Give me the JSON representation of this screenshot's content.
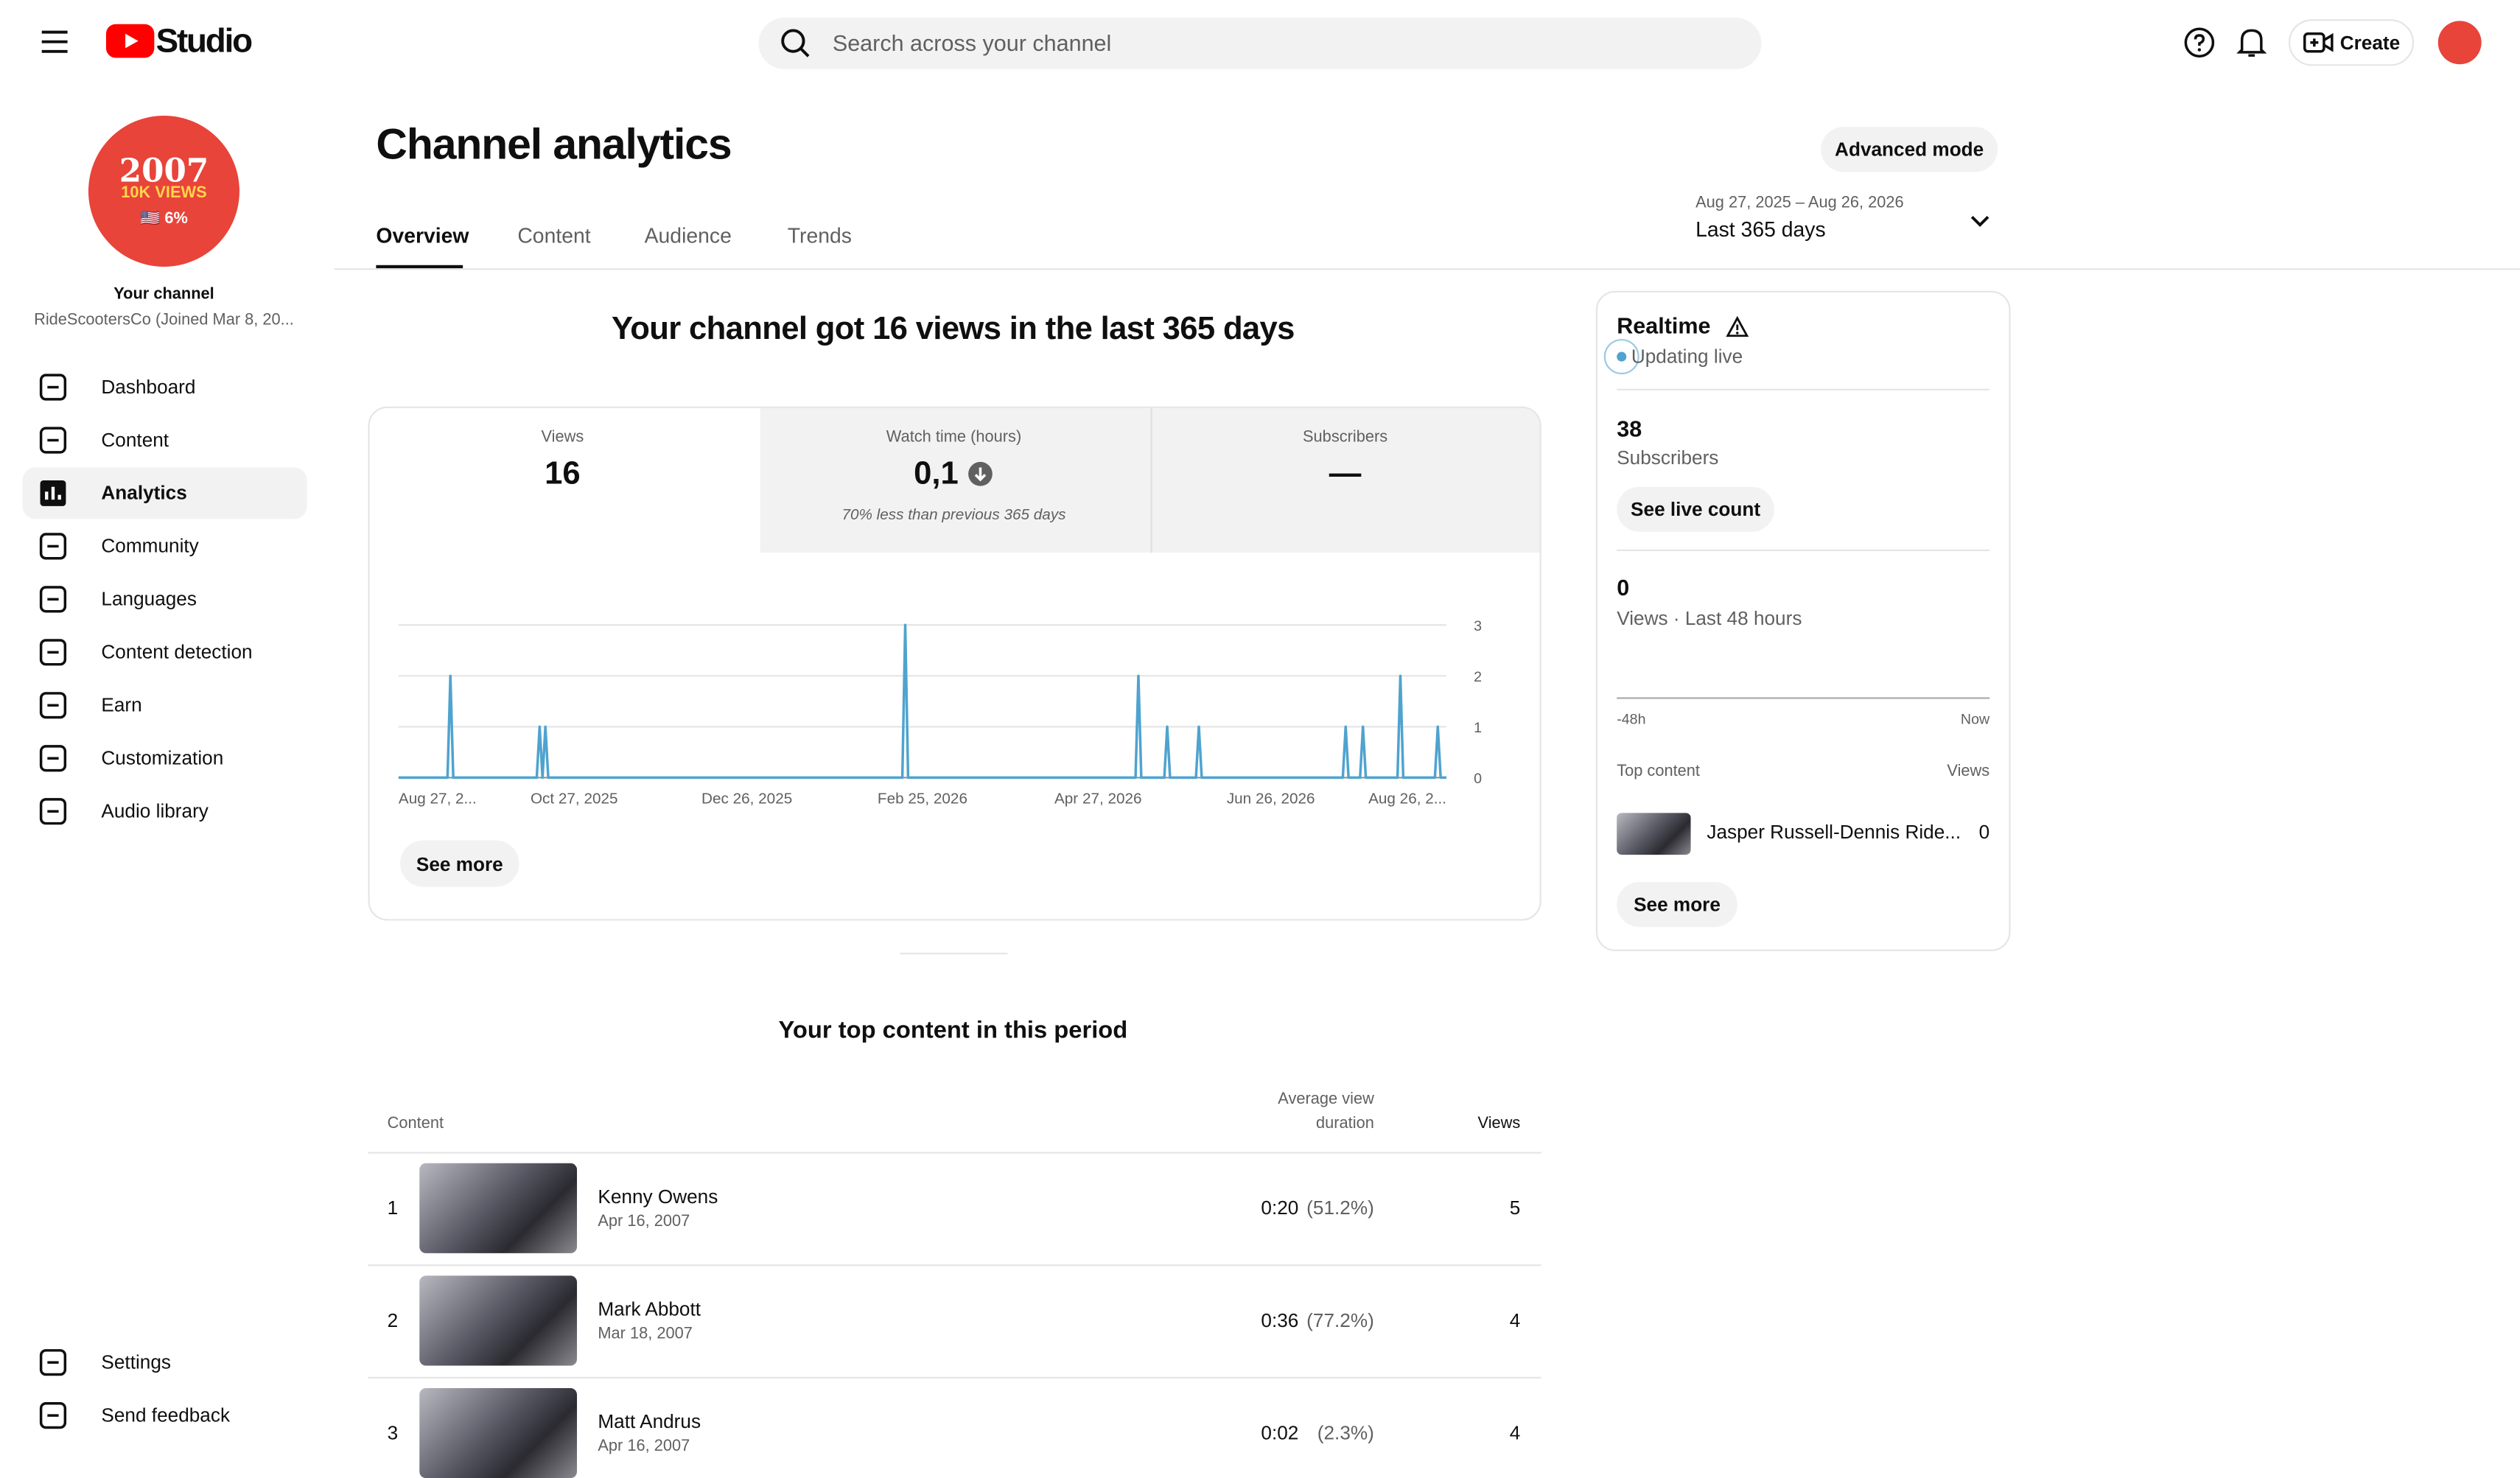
{
  "header": {
    "logo": "Studio",
    "search_placeholder": "Search across your channel",
    "create": "Create"
  },
  "sidebar": {
    "avatar": {
      "year": "2007",
      "views": "10K VIEWS",
      "stat": "🇺🇸 6%"
    },
    "channel_label": "Your channel",
    "channel_name": "RideScootersCo (Joined Mar 8, 20...",
    "nav": [
      "Dashboard",
      "Content",
      "Analytics",
      "Community",
      "Languages",
      "Content detection",
      "Earn",
      "Customization",
      "Audio library"
    ],
    "footer": [
      "Settings",
      "Send feedback"
    ]
  },
  "page": {
    "title": "Channel analytics",
    "advanced_mode": "Advanced mode",
    "tabs": [
      "Overview",
      "Content",
      "Audience",
      "Trends"
    ],
    "date_range": {
      "dates": "Aug 27, 2025 – Aug 26, 2026",
      "label": "Last 365 days"
    }
  },
  "overview": {
    "headline": "Your channel got 16 views in the last 365 days",
    "metrics": [
      {
        "label": "Views",
        "value": "16"
      },
      {
        "label": "Watch time (hours)",
        "value": "0,1",
        "note": "70% less than previous 365 days"
      },
      {
        "label": "Subscribers",
        "value": "—"
      }
    ],
    "see_more": "See more"
  },
  "chart_data": {
    "type": "line",
    "color": "#4fa3cf",
    "ylim": [
      0,
      3
    ],
    "yticks": [
      0,
      1,
      2,
      3
    ],
    "grid": true,
    "categories": [
      "Aug 27, 2...",
      null,
      null,
      null,
      null,
      null,
      null,
      null,
      null,
      null,
      null,
      null,
      null,
      null,
      null,
      null,
      null,
      null,
      null,
      null,
      null,
      null,
      null,
      null,
      null,
      null,
      null,
      null,
      null,
      null,
      null,
      null,
      null,
      null,
      null,
      null,
      null,
      null,
      null,
      null,
      null,
      null,
      null,
      null,
      null,
      null,
      null,
      null,
      null,
      null,
      null,
      null,
      null,
      null,
      null,
      null,
      null,
      null,
      null,
      null,
      null,
      "Oct 27, 2025",
      null,
      null,
      null,
      null,
      null,
      null,
      null,
      null,
      null,
      null,
      null,
      null,
      null,
      null,
      null,
      null,
      null,
      null,
      null,
      null,
      null,
      null,
      null,
      null,
      null,
      null,
      null,
      null,
      null,
      null,
      null,
      null,
      null,
      null,
      null,
      null,
      null,
      null,
      null,
      null,
      null,
      null,
      null,
      null,
      null,
      null,
      null,
      null,
      null,
      null,
      null,
      null,
      null,
      null,
      null,
      null,
      null,
      null,
      null,
      "Dec 26, 2025",
      null,
      null,
      null,
      null,
      null,
      null,
      null,
      null,
      null,
      null,
      null,
      null,
      null,
      null,
      null,
      null,
      null,
      null,
      null,
      null,
      null,
      null,
      null,
      null,
      null,
      null,
      null,
      null,
      null,
      null,
      null,
      null,
      null,
      null,
      null,
      null,
      null,
      null,
      null,
      null,
      null,
      null,
      null,
      null,
      null,
      null,
      null,
      null,
      null,
      null,
      null,
      null,
      null,
      null,
      null,
      null,
      null,
      null,
      null,
      null,
      "Feb 25, 2026",
      null,
      null,
      null,
      null,
      null,
      null,
      null,
      null,
      null,
      null,
      null,
      null,
      null,
      null,
      null,
      null,
      null,
      null,
      null,
      null,
      null,
      null,
      null,
      null,
      null,
      null,
      null,
      null,
      null,
      null,
      null,
      null,
      null,
      null,
      null,
      null,
      null,
      null,
      null,
      null,
      null,
      null,
      null,
      null,
      null,
      null,
      null,
      null,
      null,
      null,
      null,
      null,
      null,
      null,
      null,
      null,
      null,
      null,
      null,
      null,
      "Apr 27, 2026",
      null,
      null,
      null,
      null,
      null,
      null,
      null,
      null,
      null,
      null,
      null,
      null,
      null,
      null,
      null,
      null,
      null,
      null,
      null,
      null,
      null,
      null,
      null,
      null,
      null,
      null,
      null,
      null,
      null,
      null,
      null,
      null,
      null,
      null,
      null,
      null,
      null,
      null,
      null,
      null,
      null,
      null,
      null,
      null,
      null,
      null,
      null,
      null,
      null,
      null,
      null,
      null,
      null,
      null,
      null,
      null,
      null,
      null,
      null,
      "Jun 26, 2026",
      null,
      null,
      null,
      null,
      null,
      null,
      null,
      null,
      null,
      null,
      null,
      null,
      null,
      null,
      null,
      null,
      null,
      null,
      null,
      null,
      null,
      null,
      null,
      null,
      null,
      null,
      null,
      null,
      null,
      null,
      null,
      null,
      null,
      null,
      null,
      null,
      null,
      null,
      null,
      null,
      null,
      null,
      null,
      null,
      null,
      null,
      null,
      null,
      null,
      null,
      null,
      null,
      null,
      null,
      null,
      null,
      null,
      null,
      null,
      null,
      "Aug 26, 2..."
    ],
    "values": [
      0,
      0,
      0,
      0,
      0,
      0,
      0,
      0,
      0,
      0,
      0,
      0,
      0,
      0,
      0,
      0,
      0,
      0,
      2,
      0,
      0,
      0,
      0,
      0,
      0,
      0,
      0,
      0,
      0,
      0,
      0,
      0,
      0,
      0,
      0,
      0,
      0,
      0,
      0,
      0,
      0,
      0,
      0,
      0,
      0,
      0,
      0,
      0,
      0,
      1,
      0,
      1,
      0,
      0,
      0,
      0,
      0,
      0,
      0,
      0,
      0,
      0,
      0,
      0,
      0,
      0,
      0,
      0,
      0,
      0,
      0,
      0,
      0,
      0,
      0,
      0,
      0,
      0,
      0,
      0,
      0,
      0,
      0,
      0,
      0,
      0,
      0,
      0,
      0,
      0,
      0,
      0,
      0,
      0,
      0,
      0,
      0,
      0,
      0,
      0,
      0,
      0,
      0,
      0,
      0,
      0,
      0,
      0,
      0,
      0,
      0,
      0,
      0,
      0,
      0,
      0,
      0,
      0,
      0,
      0,
      0,
      0,
      0,
      0,
      0,
      0,
      0,
      0,
      0,
      0,
      0,
      0,
      0,
      0,
      0,
      0,
      0,
      0,
      0,
      0,
      0,
      0,
      0,
      0,
      0,
      0,
      0,
      0,
      0,
      0,
      0,
      0,
      0,
      0,
      0,
      0,
      0,
      0,
      0,
      0,
      0,
      0,
      0,
      0,
      0,
      0,
      0,
      0,
      0,
      0,
      0,
      0,
      0,
      0,
      0,
      0,
      3,
      0,
      0,
      0,
      0,
      0,
      0,
      0,
      0,
      0,
      0,
      0,
      0,
      0,
      0,
      0,
      0,
      0,
      0,
      0,
      0,
      0,
      0,
      0,
      0,
      0,
      0,
      0,
      0,
      0,
      0,
      0,
      0,
      0,
      0,
      0,
      0,
      0,
      0,
      0,
      0,
      0,
      0,
      0,
      0,
      0,
      0,
      0,
      0,
      0,
      0,
      0,
      0,
      0,
      0,
      0,
      0,
      0,
      0,
      0,
      0,
      0,
      0,
      0,
      0,
      0,
      0,
      0,
      0,
      0,
      0,
      0,
      0,
      0,
      0,
      0,
      0,
      0,
      0,
      0,
      0,
      2,
      0,
      0,
      0,
      0,
      0,
      0,
      0,
      0,
      0,
      1,
      0,
      0,
      0,
      0,
      0,
      0,
      0,
      0,
      0,
      0,
      1,
      0,
      0,
      0,
      0,
      0,
      0,
      0,
      0,
      0,
      0,
      0,
      0,
      0,
      0,
      0,
      0,
      0,
      0,
      0,
      0,
      0,
      0,
      0,
      0,
      0,
      0,
      0,
      0,
      0,
      0,
      0,
      0,
      0,
      0,
      0,
      0,
      0,
      0,
      0,
      0,
      0,
      0,
      0,
      0,
      0,
      0,
      0,
      0,
      0,
      0,
      1,
      0,
      0,
      0,
      0,
      0,
      1,
      0,
      0,
      0,
      0,
      0,
      0,
      0,
      0,
      0,
      0,
      0,
      0,
      2,
      0,
      0,
      0,
      0,
      0,
      0,
      0,
      0,
      0,
      0,
      0,
      0,
      1,
      0,
      0,
      0
    ]
  },
  "top_content": {
    "title": "Your top content in this period",
    "columns": [
      "Content",
      "Average view duration",
      "Views"
    ],
    "rows": [
      {
        "rank": "1",
        "title": "Kenny Owens",
        "date": "Apr 16, 2007",
        "duration": "0:20",
        "percent": "(51.2%)",
        "views": "5"
      },
      {
        "rank": "2",
        "title": "Mark Abbott",
        "date": "Mar 18, 2007",
        "duration": "0:36",
        "percent": "(77.2%)",
        "views": "4"
      },
      {
        "rank": "3",
        "title": "Matt Andrus",
        "date": "Apr 16, 2007",
        "duration": "0:02",
        "percent": "(2.3%)",
        "views": "4"
      }
    ]
  },
  "realtime": {
    "title": "Realtime",
    "status": "Updating live",
    "subscribers": "38",
    "subscribers_label": "Subscribers",
    "see_live_count": "See live count",
    "views": "0",
    "views_label": "Views · Last 48 hours",
    "axis_start": "-48h",
    "axis_end": "Now",
    "top_content_label": "Top content",
    "views_column": "Views",
    "top_item": {
      "title": "Jasper Russell-Dennis Ride...",
      "views": "0"
    },
    "see_more": "See more"
  }
}
